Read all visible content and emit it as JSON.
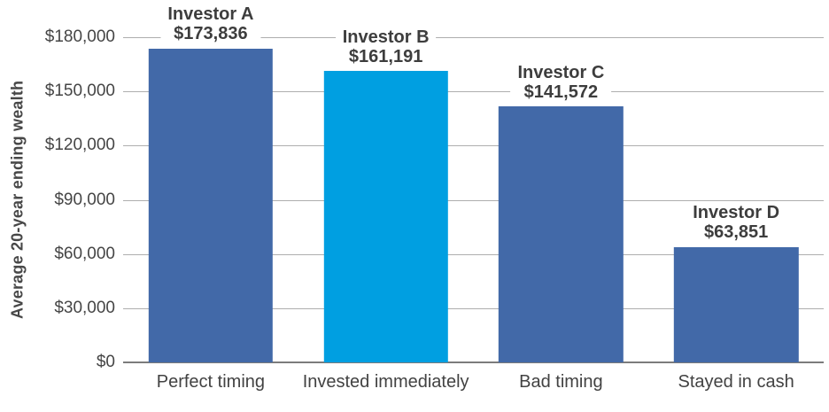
{
  "chart_data": {
    "type": "bar",
    "title": "",
    "xlabel": "",
    "ylabel": "Average 20-year ending wealth",
    "ylim": [
      0,
      180000
    ],
    "ytick_step": 30000,
    "grid": "horizontal",
    "legend": "none",
    "ytick_labels": [
      "$180,000",
      "$150,000",
      "$120,000",
      "$90,000",
      "$60,000",
      "$30,000",
      "$0"
    ],
    "categories": [
      "Perfect timing",
      "Invested immediately",
      "Bad timing",
      "Stayed in cash"
    ],
    "values": [
      173836,
      161191,
      141572,
      63851
    ],
    "bars": [
      {
        "name": "Investor A",
        "value": 173836,
        "value_label": "$173,836",
        "category": "Perfect timing",
        "color": "#4269a8"
      },
      {
        "name": "Investor B",
        "value": 161191,
        "value_label": "$161,191",
        "category": "Invested immediately",
        "color": "#009fe1"
      },
      {
        "name": "Investor C",
        "value": 141572,
        "value_label": "$141,572",
        "category": "Bad timing",
        "color": "#4269a8"
      },
      {
        "name": "Investor D",
        "value": 63851,
        "value_label": "$63,851",
        "category": "Stayed in cash",
        "color": "#4269a8"
      }
    ],
    "colors": {
      "bar_default": "#4269a8",
      "bar_highlight": "#009fe1",
      "gridline": "#aeaeae",
      "axis_line": "#7c7c7c",
      "label_text": "#3d3d3d"
    }
  }
}
